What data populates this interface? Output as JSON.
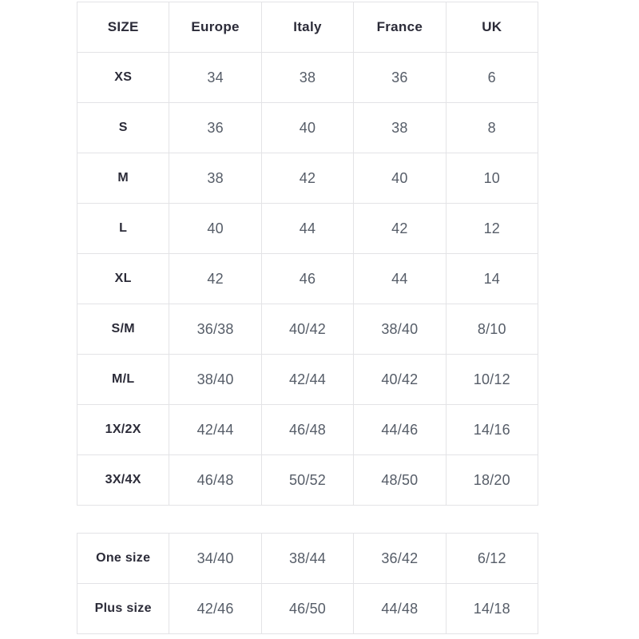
{
  "table_main": {
    "headers": [
      "SIZE",
      "Europe",
      "Italy",
      "France",
      "UK"
    ],
    "rows": [
      [
        "XS",
        "34",
        "38",
        "36",
        "6"
      ],
      [
        "S",
        "36",
        "40",
        "38",
        "8"
      ],
      [
        "M",
        "38",
        "42",
        "40",
        "10"
      ],
      [
        "L",
        "40",
        "44",
        "42",
        "12"
      ],
      [
        "XL",
        "42",
        "46",
        "44",
        "14"
      ],
      [
        "S/M",
        "36/38",
        "40/42",
        "38/40",
        "8/10"
      ],
      [
        "M/L",
        "38/40",
        "42/44",
        "40/42",
        "10/12"
      ],
      [
        "1X/2X",
        "42/44",
        "46/48",
        "44/46",
        "14/16"
      ],
      [
        "3X/4X",
        "46/48",
        "50/52",
        "48/50",
        "18/20"
      ]
    ]
  },
  "table_secondary": {
    "rows": [
      [
        "One size",
        "34/40",
        "38/44",
        "36/42",
        "6/12"
      ],
      [
        "Plus size",
        "42/46",
        "46/50",
        "44/48",
        "14/18"
      ]
    ]
  },
  "colors": {
    "background": "#ffffff",
    "border": "#e3e3e6",
    "header_text": "#2b2b38",
    "value_text": "#565d68"
  }
}
